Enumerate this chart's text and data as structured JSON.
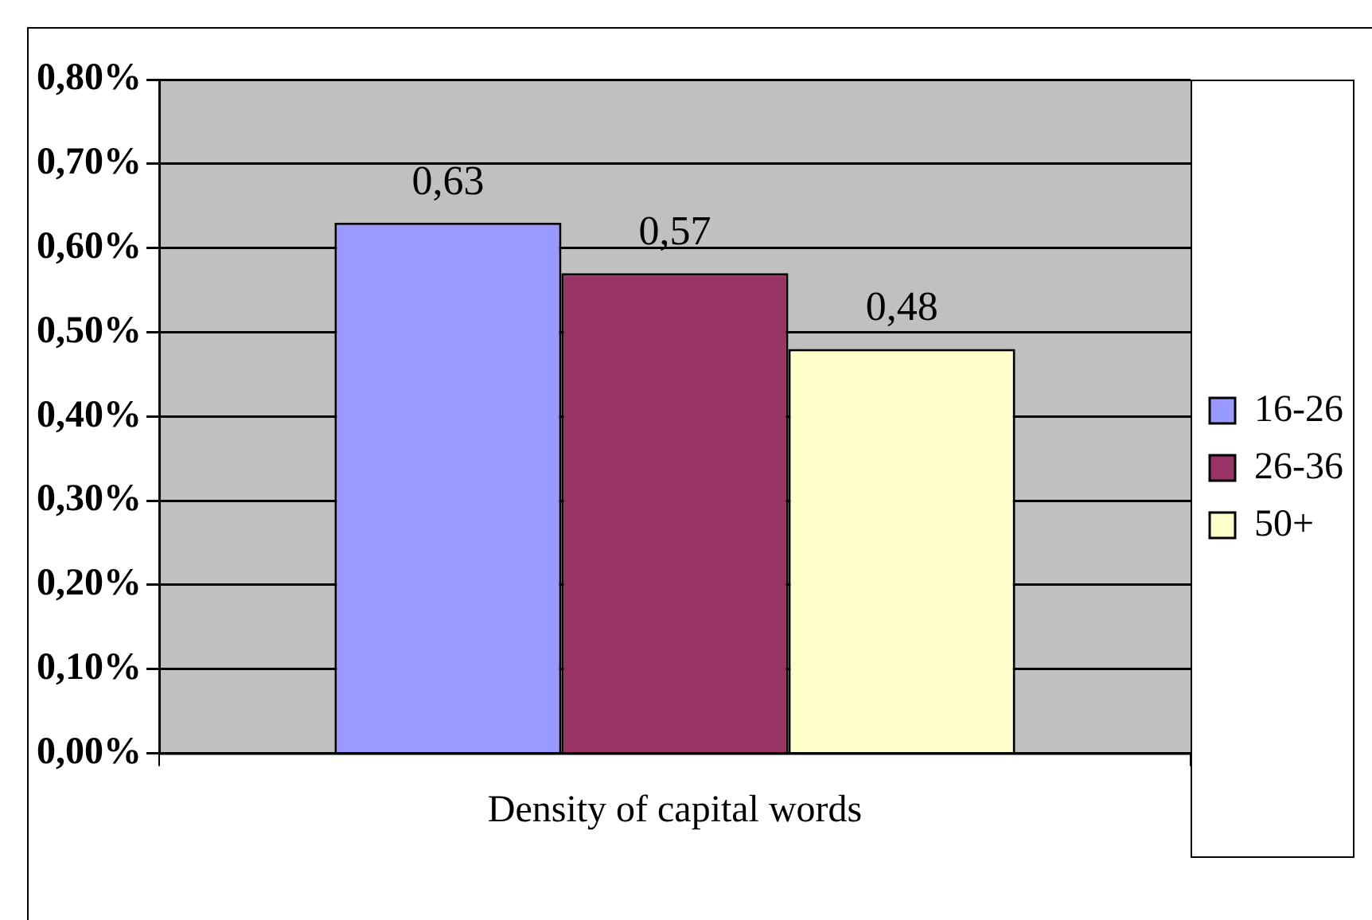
{
  "chart_data": {
    "type": "bar",
    "categories": [
      "Density of capital words"
    ],
    "series": [
      {
        "name": "16-26",
        "color": "#9999ff",
        "values": [
          0.63
        ],
        "value_labels": [
          "0,63"
        ]
      },
      {
        "name": "26-36",
        "color": "#993366",
        "values": [
          0.57
        ],
        "value_labels": [
          "0,57"
        ]
      },
      {
        "name": "50+",
        "color": "#ffffcc",
        "values": [
          0.48
        ],
        "value_labels": [
          "0,48"
        ]
      }
    ],
    "ylim": [
      0,
      0.8
    ],
    "yticks": [
      {
        "value": 0,
        "label": "0,00%"
      },
      {
        "value": 0.1,
        "label": "0,10%"
      },
      {
        "value": 0.2,
        "label": "0,20%"
      },
      {
        "value": 0.3,
        "label": "0,30%"
      },
      {
        "value": 0.4,
        "label": "0,40%"
      },
      {
        "value": 0.5,
        "label": "0,50%"
      },
      {
        "value": 0.6,
        "label": "0,60%"
      },
      {
        "value": 0.7,
        "label": "0,70%"
      },
      {
        "value": 0.8,
        "label": "0,80%"
      }
    ],
    "grid": "y",
    "legend": "right"
  }
}
